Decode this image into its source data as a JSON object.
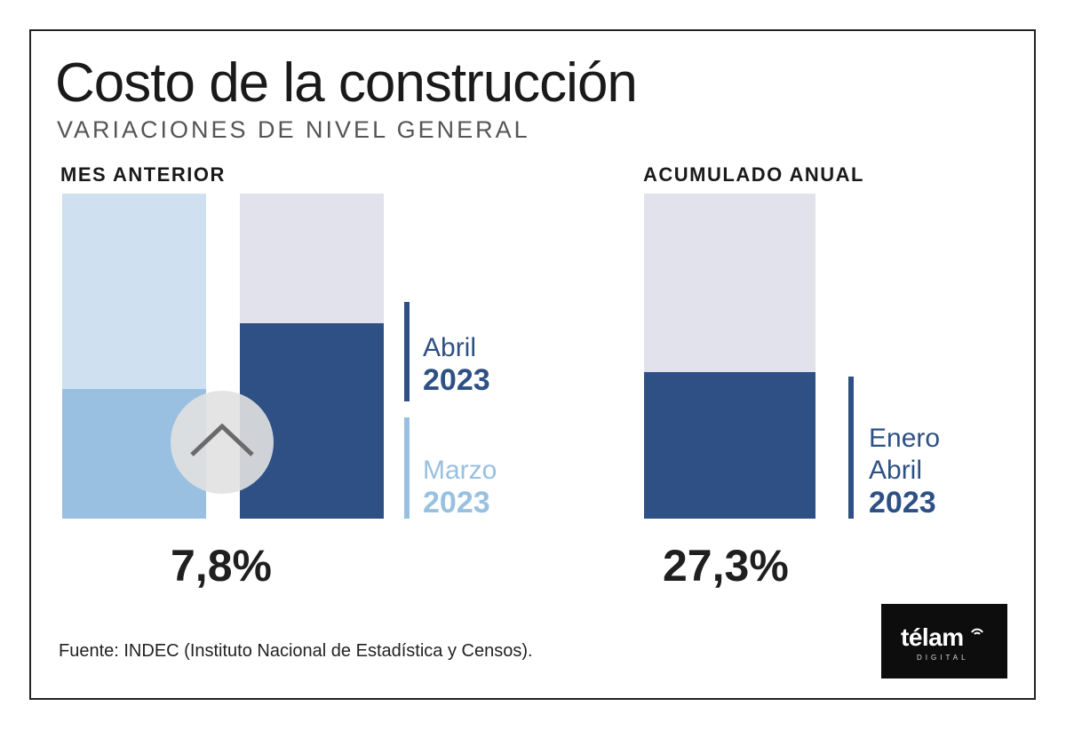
{
  "header": {
    "title": "Costo de la construcción",
    "subtitle": "VARIACIONES DE NIVEL GENERAL"
  },
  "colors": {
    "bg_bar_gray": "#e1e2ec",
    "bg_bar_lightblue": "#cfe0f0",
    "dark_blue": "#2e5084",
    "light_blue": "#99c0e0"
  },
  "chart_data": [
    {
      "type": "bar",
      "title": "MES ANTERIOR",
      "series": [
        {
          "name": "Marzo 2023",
          "fill_fraction": 0.4
        },
        {
          "name": "Abril 2023",
          "fill_fraction": 0.6
        }
      ],
      "labels": {
        "abril_month": "Abril",
        "abril_year": "2023",
        "marzo_month": "Marzo",
        "marzo_year": "2023"
      },
      "value_label": "7,8%"
    },
    {
      "type": "bar",
      "title": "ACUMULADO ANUAL",
      "series": [
        {
          "name": "Enero Abril 2023",
          "fill_fraction": 0.45
        }
      ],
      "labels": {
        "month_1": "Enero",
        "month_2": "Abril",
        "year": "2023"
      },
      "value_label": "27,3%"
    }
  ],
  "footer": {
    "source": "Fuente: INDEC (Instituto Nacional de Estadística y Censos).",
    "logo_name": "télam",
    "logo_sub": "DIGITAL"
  },
  "icons": {
    "up": "chevron-up-icon",
    "signal": "wifi-signal-icon"
  }
}
